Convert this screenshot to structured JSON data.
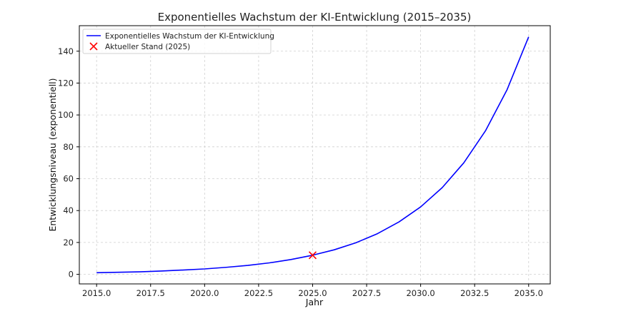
{
  "chart_data": {
    "type": "line",
    "title": "Exponentielles Wachstum der KI-Entwicklung (2015–2035)",
    "xlabel": "Jahr",
    "ylabel": "Entwicklungsniveau (exponentiell)",
    "xlim": [
      2014.2,
      2036.0
    ],
    "ylim": [
      -6,
      156
    ],
    "x_ticks": [
      2015.0,
      2017.5,
      2020.0,
      2022.5,
      2025.0,
      2027.5,
      2030.0,
      2032.5,
      2035.0
    ],
    "x_tick_labels": [
      "2015.0",
      "2017.5",
      "2020.0",
      "2022.5",
      "2025.0",
      "2027.5",
      "2030.0",
      "2032.5",
      "2035.0"
    ],
    "y_ticks": [
      0,
      20,
      40,
      60,
      80,
      100,
      120,
      140
    ],
    "y_tick_labels": [
      "0",
      "20",
      "40",
      "60",
      "80",
      "100",
      "120",
      "140"
    ],
    "grid": true,
    "legend_position": "top-left",
    "series": [
      {
        "name": "Exponentielles Wachstum der KI-Entwicklung",
        "type": "line",
        "color": "#0000ff",
        "x": [
          2015,
          2016,
          2017,
          2018,
          2019,
          2020,
          2021,
          2022,
          2023,
          2024,
          2025,
          2026,
          2027,
          2028,
          2029,
          2030,
          2031,
          2032,
          2033,
          2034,
          2035
        ],
        "y": [
          1.0,
          1.3,
          1.6,
          2.1,
          2.7,
          3.4,
          4.4,
          5.6,
          7.2,
          9.3,
          12.0,
          15.4,
          19.8,
          25.5,
          32.9,
          42.3,
          54.4,
          70.0,
          90.0,
          115.8,
          149.0
        ]
      },
      {
        "name": "Aktueller Stand (2025)",
        "type": "marker",
        "marker": "x",
        "color": "#ff0000",
        "x": [
          2025
        ],
        "y": [
          12.0
        ]
      }
    ]
  }
}
